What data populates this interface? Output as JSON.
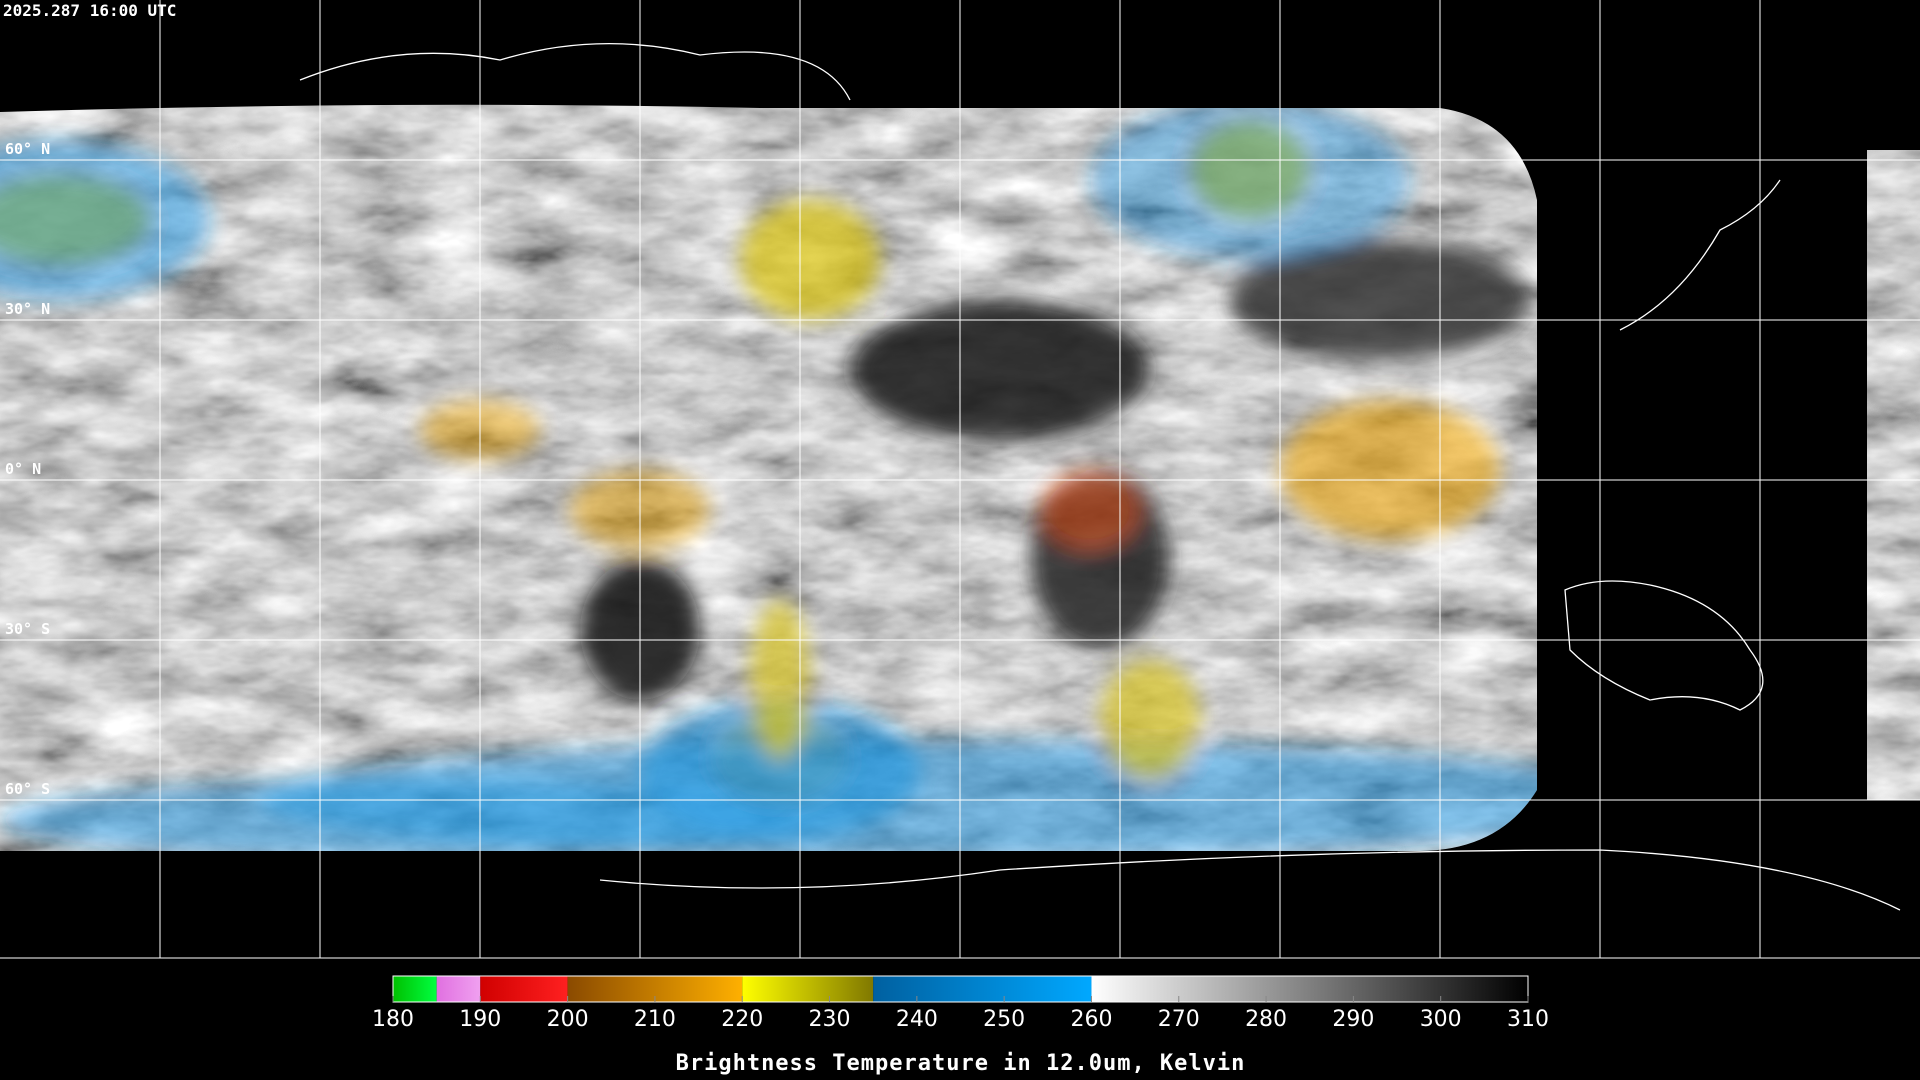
{
  "timestamp": "2025.287 16:00 UTC",
  "latitudes": [
    {
      "value": 60,
      "label": "60° N"
    },
    {
      "value": 30,
      "label": "30° N"
    },
    {
      "value": 0,
      "label": "0° N"
    },
    {
      "value": -30,
      "label": "30° S"
    },
    {
      "value": -60,
      "label": "60° S"
    }
  ],
  "colorbar": {
    "title": "Brightness Temperature in 12.0um, Kelvin",
    "lim": [
      180,
      310
    ],
    "ticks": [
      180,
      190,
      200,
      210,
      220,
      230,
      240,
      250,
      260,
      270,
      280,
      290,
      300,
      310
    ],
    "segments": [
      {
        "from": 180,
        "to": 185,
        "colors": [
          "#00c000",
          "#00ff40"
        ]
      },
      {
        "from": 185,
        "to": 190,
        "colors": [
          "#e070e0",
          "#f0a0f0"
        ]
      },
      {
        "from": 190,
        "to": 200,
        "colors": [
          "#d00000",
          "#ff2020"
        ]
      },
      {
        "from": 200,
        "to": 220,
        "colors": [
          "#8a4a00",
          "#ffb000"
        ]
      },
      {
        "from": 220,
        "to": 235,
        "colors": [
          "#ffff00",
          "#807800"
        ]
      },
      {
        "from": 235,
        "to": 260,
        "colors": [
          "#0060a0",
          "#00a8ff"
        ]
      },
      {
        "from": 260,
        "to": 310,
        "colors": [
          "#ffffff",
          "#000000"
        ]
      }
    ]
  }
}
